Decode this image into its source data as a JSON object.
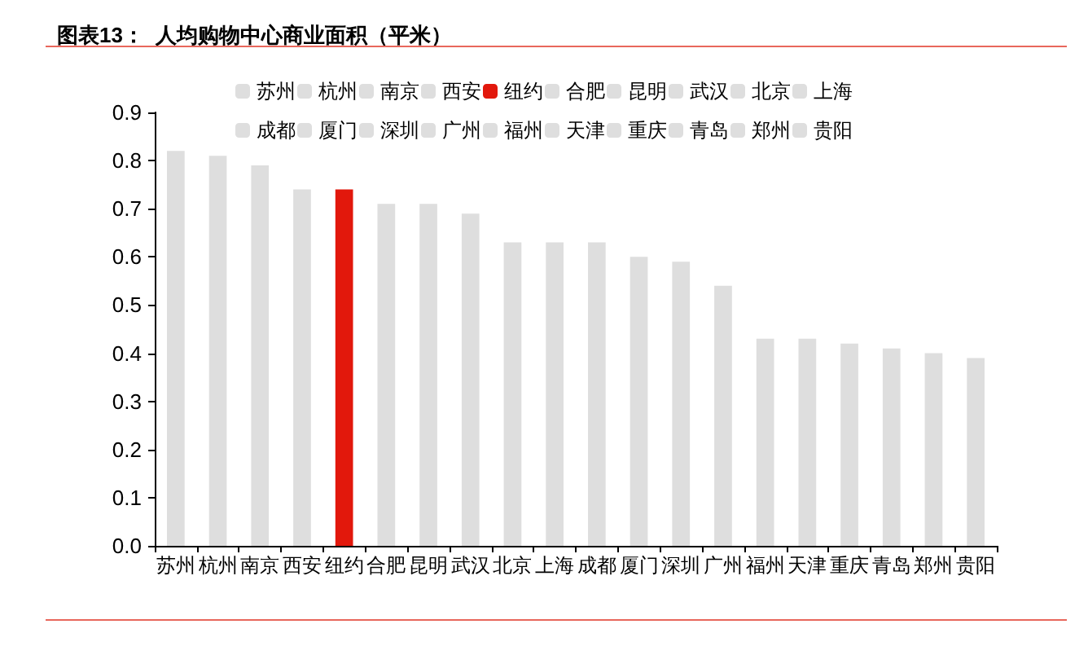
{
  "chart_data": {
    "type": "bar",
    "title": "图表13：  人均购物中心商业面积（平米）",
    "categories": [
      "苏州",
      "杭州",
      "南京",
      "西安",
      "纽约",
      "合肥",
      "昆明",
      "武汉",
      "北京",
      "上海",
      "成都",
      "厦门",
      "深圳",
      "广州",
      "福州",
      "天津",
      "重庆",
      "青岛",
      "郑州",
      "贵阳"
    ],
    "series": [
      {
        "name": "苏州",
        "color": "#dedede",
        "values": [
          0.82,
          null,
          null,
          null,
          null,
          null,
          null,
          null,
          null,
          null,
          null,
          null,
          null,
          null,
          null,
          null,
          null,
          null,
          null,
          null
        ]
      },
      {
        "name": "杭州",
        "color": "#dedede",
        "values": [
          null,
          0.81,
          null,
          null,
          null,
          null,
          null,
          null,
          null,
          null,
          null,
          null,
          null,
          null,
          null,
          null,
          null,
          null,
          null,
          null
        ]
      },
      {
        "name": "南京",
        "color": "#dedede",
        "values": [
          null,
          null,
          0.79,
          null,
          null,
          null,
          null,
          null,
          null,
          null,
          null,
          null,
          null,
          null,
          null,
          null,
          null,
          null,
          null,
          null
        ]
      },
      {
        "name": "西安",
        "color": "#dedede",
        "values": [
          null,
          null,
          null,
          0.74,
          null,
          null,
          null,
          null,
          null,
          null,
          null,
          null,
          null,
          null,
          null,
          null,
          null,
          null,
          null,
          null
        ]
      },
      {
        "name": "纽约",
        "color": "#e2180c",
        "values": [
          null,
          null,
          null,
          null,
          0.74,
          null,
          null,
          null,
          null,
          null,
          null,
          null,
          null,
          null,
          null,
          null,
          null,
          null,
          null,
          null
        ]
      },
      {
        "name": "合肥",
        "color": "#dedede",
        "values": [
          null,
          null,
          null,
          null,
          null,
          0.71,
          null,
          null,
          null,
          null,
          null,
          null,
          null,
          null,
          null,
          null,
          null,
          null,
          null,
          null
        ]
      },
      {
        "name": "昆明",
        "color": "#dedede",
        "values": [
          null,
          null,
          null,
          null,
          null,
          null,
          0.71,
          null,
          null,
          null,
          null,
          null,
          null,
          null,
          null,
          null,
          null,
          null,
          null,
          null
        ]
      },
      {
        "name": "武汉",
        "color": "#dedede",
        "values": [
          null,
          null,
          null,
          null,
          null,
          null,
          null,
          0.69,
          null,
          null,
          null,
          null,
          null,
          null,
          null,
          null,
          null,
          null,
          null,
          null
        ]
      },
      {
        "name": "北京",
        "color": "#dedede",
        "values": [
          null,
          null,
          null,
          null,
          null,
          null,
          null,
          null,
          0.63,
          null,
          null,
          null,
          null,
          null,
          null,
          null,
          null,
          null,
          null,
          null
        ]
      },
      {
        "name": "上海",
        "color": "#dedede",
        "values": [
          null,
          null,
          null,
          null,
          null,
          null,
          null,
          null,
          null,
          0.63,
          null,
          null,
          null,
          null,
          null,
          null,
          null,
          null,
          null,
          null
        ]
      },
      {
        "name": "成都",
        "color": "#dedede",
        "values": [
          null,
          null,
          null,
          null,
          null,
          null,
          null,
          null,
          null,
          null,
          0.63,
          null,
          null,
          null,
          null,
          null,
          null,
          null,
          null,
          null
        ]
      },
      {
        "name": "厦门",
        "color": "#dedede",
        "values": [
          null,
          null,
          null,
          null,
          null,
          null,
          null,
          null,
          null,
          null,
          null,
          0.6,
          null,
          null,
          null,
          null,
          null,
          null,
          null,
          null
        ]
      },
      {
        "name": "深圳",
        "color": "#dedede",
        "values": [
          null,
          null,
          null,
          null,
          null,
          null,
          null,
          null,
          null,
          null,
          null,
          null,
          0.59,
          null,
          null,
          null,
          null,
          null,
          null,
          null
        ]
      },
      {
        "name": "广州",
        "color": "#dedede",
        "values": [
          null,
          null,
          null,
          null,
          null,
          null,
          null,
          null,
          null,
          null,
          null,
          null,
          null,
          0.54,
          null,
          null,
          null,
          null,
          null,
          null
        ]
      },
      {
        "name": "福州",
        "color": "#dedede",
        "values": [
          null,
          null,
          null,
          null,
          null,
          null,
          null,
          null,
          null,
          null,
          null,
          null,
          null,
          null,
          0.43,
          null,
          null,
          null,
          null,
          null
        ]
      },
      {
        "name": "天津",
        "color": "#dedede",
        "values": [
          null,
          null,
          null,
          null,
          null,
          null,
          null,
          null,
          null,
          null,
          null,
          null,
          null,
          null,
          null,
          0.43,
          null,
          null,
          null,
          null
        ]
      },
      {
        "name": "重庆",
        "color": "#dedede",
        "values": [
          null,
          null,
          null,
          null,
          null,
          null,
          null,
          null,
          null,
          null,
          null,
          null,
          null,
          null,
          null,
          null,
          0.42,
          null,
          null,
          null
        ]
      },
      {
        "name": "青岛",
        "color": "#dedede",
        "values": [
          null,
          null,
          null,
          null,
          null,
          null,
          null,
          null,
          null,
          null,
          null,
          null,
          null,
          null,
          null,
          null,
          null,
          0.41,
          null,
          null
        ]
      },
      {
        "name": "郑州",
        "color": "#dedede",
        "values": [
          null,
          null,
          null,
          null,
          null,
          null,
          null,
          null,
          null,
          null,
          null,
          null,
          null,
          null,
          null,
          null,
          null,
          null,
          0.4,
          null
        ]
      },
      {
        "name": "贵阳",
        "color": "#dedede",
        "values": [
          null,
          null,
          null,
          null,
          null,
          null,
          null,
          null,
          null,
          null,
          null,
          null,
          null,
          null,
          null,
          null,
          null,
          null,
          null,
          0.39
        ]
      }
    ],
    "ylim": [
      0,
      0.9
    ],
    "yticks": [
      {
        "value": 0,
        "label": "0.0"
      },
      0.1,
      0.2,
      0.3,
      0.4,
      0.5,
      0.6,
      0.7,
      0.8,
      0.9
    ],
    "legend": "top"
  }
}
